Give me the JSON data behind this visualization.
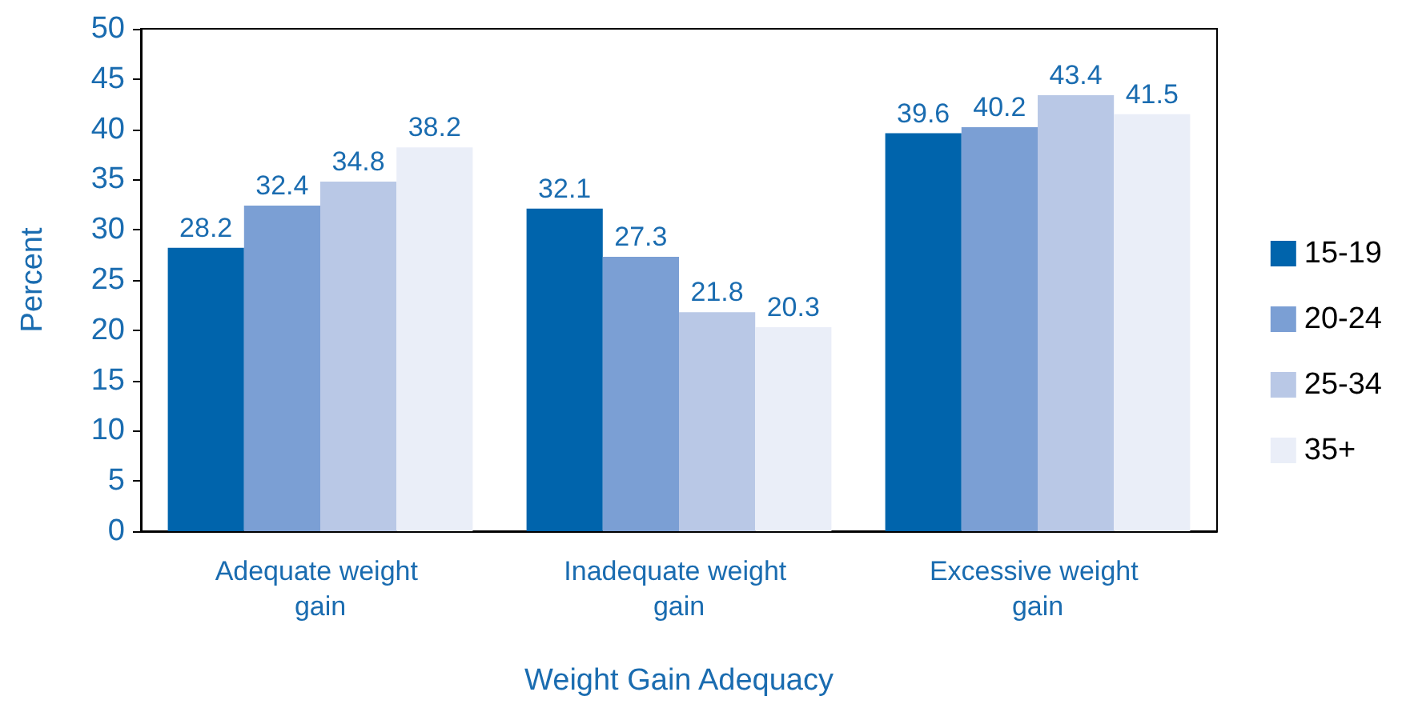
{
  "chart_data": {
    "type": "bar",
    "xlabel": "Weight Gain Adequacy",
    "ylabel": "Percent",
    "categories": [
      "Adequate weight gain",
      "Inadequate weight gain",
      "Excessive weight gain"
    ],
    "series": [
      {
        "name": "15-19",
        "color": "#0064ac",
        "values": [
          28.2,
          32.1,
          39.6
        ]
      },
      {
        "name": "20-24",
        "color": "#7b9fd4",
        "values": [
          32.4,
          27.3,
          40.2
        ]
      },
      {
        "name": "25-34",
        "color": "#b9c8e6",
        "values": [
          34.8,
          21.8,
          43.4
        ]
      },
      {
        "name": "35+",
        "color": "#eaeef8",
        "values": [
          38.2,
          20.3,
          41.5
        ]
      }
    ],
    "ylim": [
      0,
      50
    ],
    "yticks": [
      0,
      5,
      10,
      15,
      20,
      25,
      30,
      35,
      40,
      45,
      50
    ],
    "data_labels": true,
    "grid": false,
    "legend": "right"
  }
}
